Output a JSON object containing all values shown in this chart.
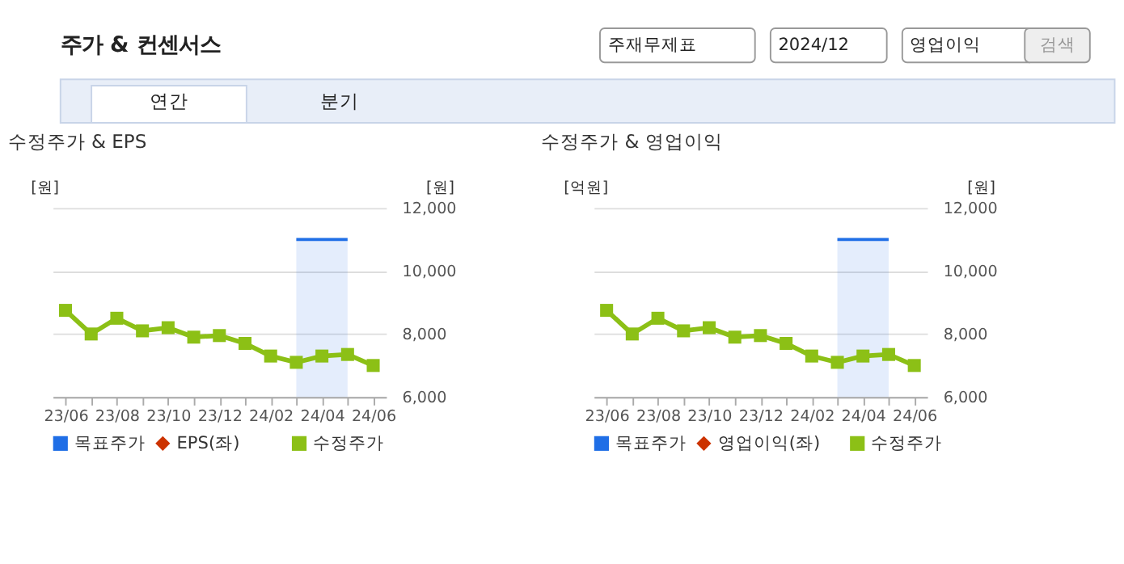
{
  "chart_data": [
    {
      "type": "line",
      "title": "수정주가 & EPS",
      "annotations": [
        "주가 & 컨센서스",
        "주재무제표",
        "2024/12",
        "영업이익",
        "검색",
        "연간",
        "분기"
      ],
      "categories": [
        "23/06",
        null,
        "23/08",
        null,
        "23/10",
        null,
        "23/12",
        null,
        "24/02",
        null,
        "24/04",
        null,
        "24/06"
      ],
      "ylabel": "[원]",
      "y2label": "[원]",
      "y2lim": [
        6000,
        12000
      ],
      "y2ticks": [
        {
          "value": 6000,
          "label": "6,000"
        },
        {
          "value": 8000,
          "label": "8,000"
        },
        {
          "value": 10000,
          "label": "10,000"
        },
        {
          "value": 12000,
          "label": "12,000"
        }
      ],
      "grid": "y",
      "legend": "bottom",
      "series": [
        {
          "name": "목표주가",
          "type": "area",
          "color": "#1f6ee6",
          "axis": "y2",
          "values": [
            null,
            null,
            null,
            null,
            null,
            null,
            null,
            null,
            null,
            11000,
            11000,
            11000,
            null
          ]
        },
        {
          "name": "EPS(좌)",
          "type": "line",
          "color": "#cc3300",
          "marker": "diamond",
          "values": [
            null,
            null,
            null,
            null,
            null,
            null,
            null,
            null,
            null,
            null,
            null,
            null,
            null
          ]
        },
        {
          "name": "수정주가",
          "type": "line",
          "color": "#8cc016",
          "marker": "square",
          "axis": "y2",
          "values": [
            8750,
            8000,
            8500,
            8100,
            8200,
            7900,
            7950,
            7700,
            7300,
            7100,
            7300,
            7350,
            7000
          ]
        }
      ]
    },
    {
      "type": "line",
      "title": "수정주가 & 영업이익",
      "categories": [
        "23/06",
        null,
        "23/08",
        null,
        "23/10",
        null,
        "23/12",
        null,
        "24/02",
        null,
        "24/04",
        null,
        "24/06"
      ],
      "ylabel": "[억원]",
      "y2label": "[원]",
      "y2lim": [
        6000,
        12000
      ],
      "y2ticks": [
        {
          "value": 6000,
          "label": "6,000"
        },
        {
          "value": 8000,
          "label": "8,000"
        },
        {
          "value": 10000,
          "label": "10,000"
        },
        {
          "value": 12000,
          "label": "12,000"
        }
      ],
      "grid": "y",
      "legend": "bottom",
      "series": [
        {
          "name": "목표주가",
          "type": "area",
          "color": "#1f6ee6",
          "axis": "y2",
          "values": [
            null,
            null,
            null,
            null,
            null,
            null,
            null,
            null,
            null,
            11000,
            11000,
            11000,
            null
          ]
        },
        {
          "name": "영업이익(좌)",
          "type": "line",
          "color": "#cc3300",
          "marker": "diamond",
          "values": [
            null,
            null,
            null,
            null,
            null,
            null,
            null,
            null,
            null,
            null,
            null,
            null,
            null
          ]
        },
        {
          "name": "수정주가",
          "type": "line",
          "color": "#8cc016",
          "marker": "square",
          "axis": "y2",
          "values": [
            8750,
            8000,
            8500,
            8100,
            8200,
            7900,
            7950,
            7700,
            7300,
            7100,
            7300,
            7350,
            7000
          ]
        }
      ]
    }
  ]
}
